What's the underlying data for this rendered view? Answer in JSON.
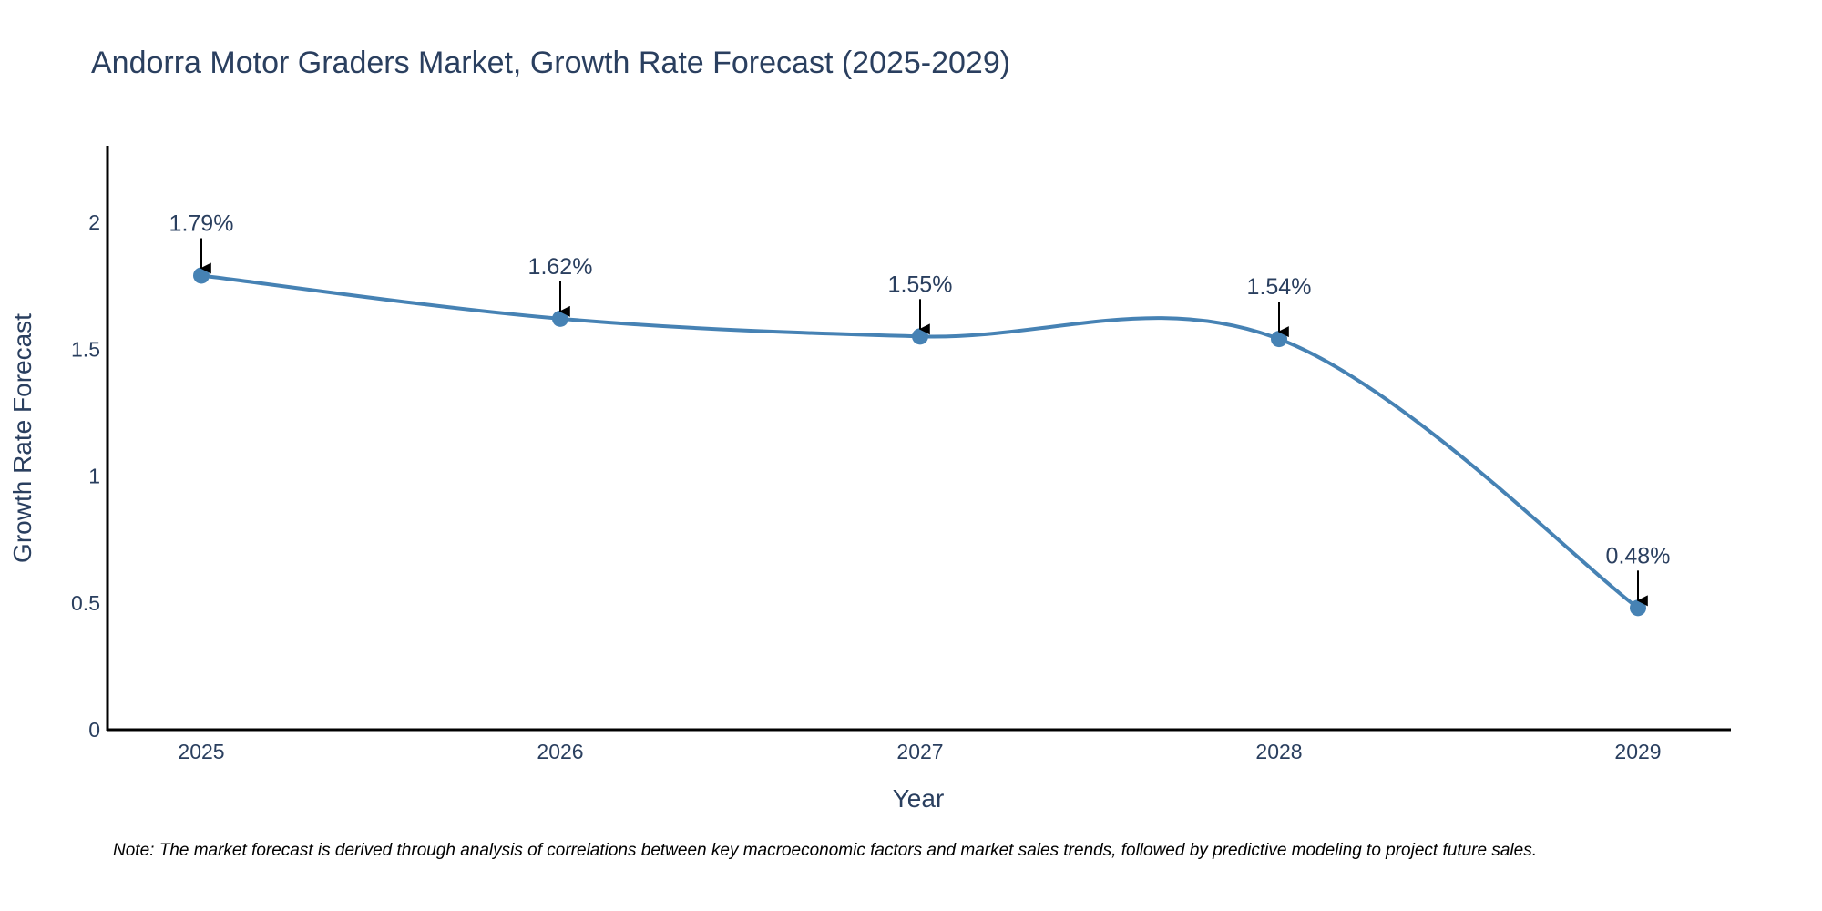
{
  "chart_data": {
    "type": "line",
    "title": "Andorra Motor Graders Market, Growth Rate Forecast (2025-2029)",
    "xlabel": "Year",
    "ylabel": "Growth Rate Forecast",
    "categories": [
      "2025",
      "2026",
      "2027",
      "2028",
      "2029"
    ],
    "series": [
      {
        "name": "Growth Rate Forecast",
        "values": [
          1.79,
          1.62,
          1.55,
          1.54,
          0.48
        ],
        "labels": [
          "1.79%",
          "1.62%",
          "1.55%",
          "1.54%",
          "0.48%"
        ],
        "color": "#4682b4"
      }
    ],
    "yticks": [
      "0",
      "0.5",
      "1",
      "1.5",
      "2"
    ],
    "ytick_values": [
      0,
      0.5,
      1,
      1.5,
      2
    ],
    "ylim": [
      0,
      2.3
    ],
    "grid": false,
    "annotation_arrow_color": "#000000",
    "note": "Note: The market forecast is derived through analysis of correlations between key macroeconomic factors and market sales trends, followed by predictive modeling to project future sales."
  }
}
